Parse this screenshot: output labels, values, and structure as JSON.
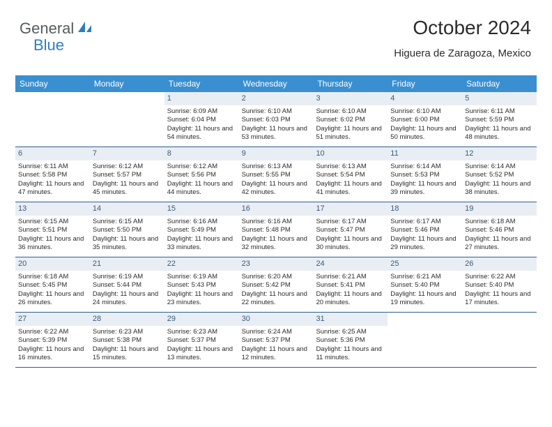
{
  "logo": {
    "general": "General",
    "blue": "Blue"
  },
  "header": {
    "title": "October 2024",
    "location": "Higuera de Zaragoza, Mexico"
  },
  "colors": {
    "header_bg": "#3a8fd0",
    "header_text": "#ffffff",
    "daynum_bg": "#e8eef4",
    "daynum_text": "#3a5a7a",
    "row_border": "#2d5f8f",
    "body_text": "#2b2b2b",
    "logo_general": "#555a5e",
    "logo_blue": "#2f7dc2"
  },
  "days_of_week": [
    "Sunday",
    "Monday",
    "Tuesday",
    "Wednesday",
    "Thursday",
    "Friday",
    "Saturday"
  ],
  "weeks": [
    [
      null,
      null,
      {
        "n": "1",
        "sr": "Sunrise: 6:09 AM",
        "ss": "Sunset: 6:04 PM",
        "dl": "Daylight: 11 hours and 54 minutes."
      },
      {
        "n": "2",
        "sr": "Sunrise: 6:10 AM",
        "ss": "Sunset: 6:03 PM",
        "dl": "Daylight: 11 hours and 53 minutes."
      },
      {
        "n": "3",
        "sr": "Sunrise: 6:10 AM",
        "ss": "Sunset: 6:02 PM",
        "dl": "Daylight: 11 hours and 51 minutes."
      },
      {
        "n": "4",
        "sr": "Sunrise: 6:10 AM",
        "ss": "Sunset: 6:00 PM",
        "dl": "Daylight: 11 hours and 50 minutes."
      },
      {
        "n": "5",
        "sr": "Sunrise: 6:11 AM",
        "ss": "Sunset: 5:59 PM",
        "dl": "Daylight: 11 hours and 48 minutes."
      }
    ],
    [
      {
        "n": "6",
        "sr": "Sunrise: 6:11 AM",
        "ss": "Sunset: 5:58 PM",
        "dl": "Daylight: 11 hours and 47 minutes."
      },
      {
        "n": "7",
        "sr": "Sunrise: 6:12 AM",
        "ss": "Sunset: 5:57 PM",
        "dl": "Daylight: 11 hours and 45 minutes."
      },
      {
        "n": "8",
        "sr": "Sunrise: 6:12 AM",
        "ss": "Sunset: 5:56 PM",
        "dl": "Daylight: 11 hours and 44 minutes."
      },
      {
        "n": "9",
        "sr": "Sunrise: 6:13 AM",
        "ss": "Sunset: 5:55 PM",
        "dl": "Daylight: 11 hours and 42 minutes."
      },
      {
        "n": "10",
        "sr": "Sunrise: 6:13 AM",
        "ss": "Sunset: 5:54 PM",
        "dl": "Daylight: 11 hours and 41 minutes."
      },
      {
        "n": "11",
        "sr": "Sunrise: 6:14 AM",
        "ss": "Sunset: 5:53 PM",
        "dl": "Daylight: 11 hours and 39 minutes."
      },
      {
        "n": "12",
        "sr": "Sunrise: 6:14 AM",
        "ss": "Sunset: 5:52 PM",
        "dl": "Daylight: 11 hours and 38 minutes."
      }
    ],
    [
      {
        "n": "13",
        "sr": "Sunrise: 6:15 AM",
        "ss": "Sunset: 5:51 PM",
        "dl": "Daylight: 11 hours and 36 minutes."
      },
      {
        "n": "14",
        "sr": "Sunrise: 6:15 AM",
        "ss": "Sunset: 5:50 PM",
        "dl": "Daylight: 11 hours and 35 minutes."
      },
      {
        "n": "15",
        "sr": "Sunrise: 6:16 AM",
        "ss": "Sunset: 5:49 PM",
        "dl": "Daylight: 11 hours and 33 minutes."
      },
      {
        "n": "16",
        "sr": "Sunrise: 6:16 AM",
        "ss": "Sunset: 5:48 PM",
        "dl": "Daylight: 11 hours and 32 minutes."
      },
      {
        "n": "17",
        "sr": "Sunrise: 6:17 AM",
        "ss": "Sunset: 5:47 PM",
        "dl": "Daylight: 11 hours and 30 minutes."
      },
      {
        "n": "18",
        "sr": "Sunrise: 6:17 AM",
        "ss": "Sunset: 5:46 PM",
        "dl": "Daylight: 11 hours and 29 minutes."
      },
      {
        "n": "19",
        "sr": "Sunrise: 6:18 AM",
        "ss": "Sunset: 5:46 PM",
        "dl": "Daylight: 11 hours and 27 minutes."
      }
    ],
    [
      {
        "n": "20",
        "sr": "Sunrise: 6:18 AM",
        "ss": "Sunset: 5:45 PM",
        "dl": "Daylight: 11 hours and 26 minutes."
      },
      {
        "n": "21",
        "sr": "Sunrise: 6:19 AM",
        "ss": "Sunset: 5:44 PM",
        "dl": "Daylight: 11 hours and 24 minutes."
      },
      {
        "n": "22",
        "sr": "Sunrise: 6:19 AM",
        "ss": "Sunset: 5:43 PM",
        "dl": "Daylight: 11 hours and 23 minutes."
      },
      {
        "n": "23",
        "sr": "Sunrise: 6:20 AM",
        "ss": "Sunset: 5:42 PM",
        "dl": "Daylight: 11 hours and 22 minutes."
      },
      {
        "n": "24",
        "sr": "Sunrise: 6:21 AM",
        "ss": "Sunset: 5:41 PM",
        "dl": "Daylight: 11 hours and 20 minutes."
      },
      {
        "n": "25",
        "sr": "Sunrise: 6:21 AM",
        "ss": "Sunset: 5:40 PM",
        "dl": "Daylight: 11 hours and 19 minutes."
      },
      {
        "n": "26",
        "sr": "Sunrise: 6:22 AM",
        "ss": "Sunset: 5:40 PM",
        "dl": "Daylight: 11 hours and 17 minutes."
      }
    ],
    [
      {
        "n": "27",
        "sr": "Sunrise: 6:22 AM",
        "ss": "Sunset: 5:39 PM",
        "dl": "Daylight: 11 hours and 16 minutes."
      },
      {
        "n": "28",
        "sr": "Sunrise: 6:23 AM",
        "ss": "Sunset: 5:38 PM",
        "dl": "Daylight: 11 hours and 15 minutes."
      },
      {
        "n": "29",
        "sr": "Sunrise: 6:23 AM",
        "ss": "Sunset: 5:37 PM",
        "dl": "Daylight: 11 hours and 13 minutes."
      },
      {
        "n": "30",
        "sr": "Sunrise: 6:24 AM",
        "ss": "Sunset: 5:37 PM",
        "dl": "Daylight: 11 hours and 12 minutes."
      },
      {
        "n": "31",
        "sr": "Sunrise: 6:25 AM",
        "ss": "Sunset: 5:36 PM",
        "dl": "Daylight: 11 hours and 11 minutes."
      },
      null,
      null
    ]
  ]
}
